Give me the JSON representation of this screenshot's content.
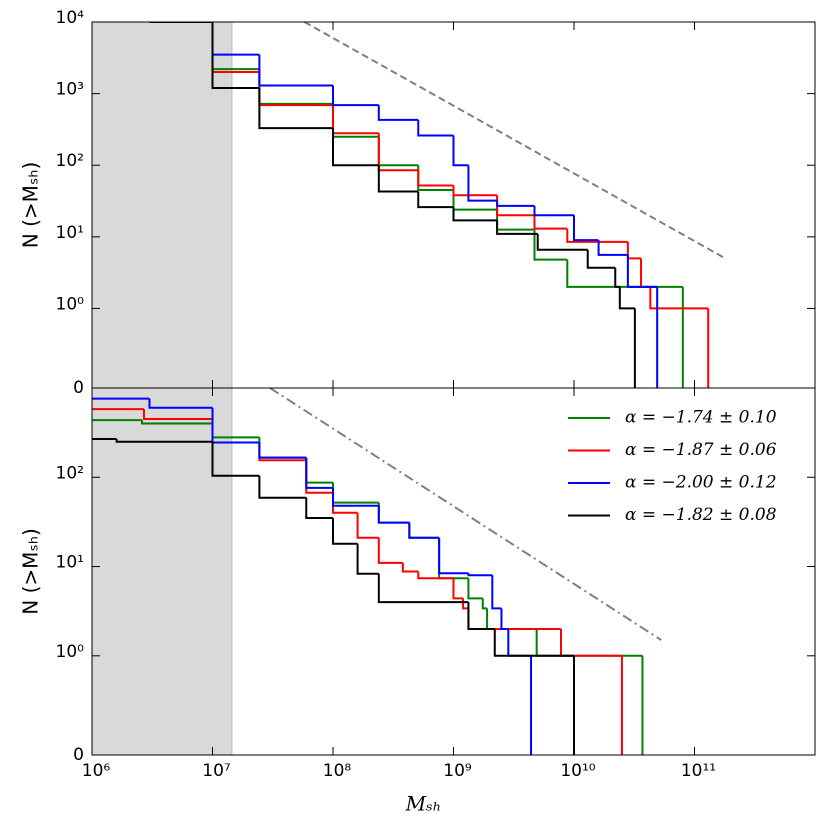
{
  "chart_data": [
    {
      "type": "line",
      "xscale": "log",
      "yscale": "symlog",
      "linthresh": 1,
      "xlim": [
        1000000,
        1000000000000
      ],
      "ylim": [
        0,
        10000
      ],
      "xticks": [
        1000000,
        10000000,
        100000000,
        1000000000,
        10000000000,
        100000000000
      ],
      "yticks": [
        0,
        {
          "value": 1,
          "label": "10⁰"
        },
        {
          "value": 10,
          "label": "10¹"
        },
        {
          "value": 100,
          "label": "10²"
        },
        {
          "value": 1000,
          "label": "10³"
        },
        {
          "value": 10000,
          "label": "10⁴"
        }
      ],
      "ylabel": "N (>Mₛₕ)",
      "shade_xlim": [
        1000000,
        14500000
      ],
      "shade_color": "#d9d9d9",
      "reference": {
        "color": "#808080",
        "dash": "dashed",
        "x": [
          58000000,
          180000000000
        ],
        "values": [
          10000,
          5
        ]
      },
      "series": [
        {
          "color": "#008000",
          "x": [
            4400000,
            10000000,
            24500000,
            100000000,
            240000000,
            510000000,
            1000000000,
            2300000000,
            4700000000,
            8800000000,
            80000000000
          ],
          "values": [
            10000,
            2200,
            720,
            250,
            100,
            45,
            24,
            12.6,
            4.8,
            2,
            0
          ]
        },
        {
          "color": "#ff0000",
          "x": [
            4400000,
            10000000,
            24500000,
            100000000,
            240000000,
            510000000,
            1000000000,
            2300000000,
            4700000000,
            8800000000,
            28000000000,
            36000000000,
            43000000000,
            130000000000
          ],
          "values": [
            10000,
            2000,
            690,
            280,
            85,
            52,
            38,
            20,
            13,
            8.5,
            5,
            2,
            1,
            0
          ]
        },
        {
          "color": "#0000ff",
          "x": [
            7000000,
            10000000,
            24500000,
            100000000,
            240000000,
            510000000,
            1000000000,
            1330000000,
            2300000000,
            4700000000,
            10000000000,
            16000000000,
            28000000000,
            49000000000
          ],
          "values": [
            10000,
            3500,
            1300,
            690,
            430,
            260,
            100,
            32,
            27,
            20,
            9,
            5.6,
            2,
            0
          ]
        },
        {
          "color": "#000000",
          "x": [
            3000000,
            10000000,
            24500000,
            100000000,
            240000000,
            510000000,
            1000000000,
            2300000000,
            5000000000,
            13000000000,
            22000000000,
            24000000000,
            32000000000
          ],
          "values": [
            10000,
            1200,
            330,
            100,
            43,
            26,
            17,
            11,
            6.6,
            3.7,
            2,
            1,
            0
          ]
        }
      ]
    },
    {
      "type": "line",
      "xscale": "log",
      "yscale": "symlog",
      "linthresh": 1,
      "xlim": [
        1000000,
        1000000000000
      ],
      "ylim": [
        0,
        1000
      ],
      "xticks": [
        {
          "value": 1000000,
          "label": "10⁶"
        },
        {
          "value": 10000000,
          "label": "10⁷"
        },
        {
          "value": 100000000,
          "label": "10⁸"
        },
        {
          "value": 1000000000,
          "label": "10⁹"
        },
        {
          "value": 10000000000,
          "label": "10¹⁰"
        },
        {
          "value": 100000000000,
          "label": "10¹¹"
        }
      ],
      "yticks": [
        0,
        {
          "value": 1,
          "label": "10⁰"
        },
        {
          "value": 10,
          "label": "10¹"
        },
        {
          "value": 100,
          "label": "10²"
        }
      ],
      "xlabel": "Mₛₕ",
      "ylabel": "N (>Mₛₕ)",
      "legend": "upper right",
      "shade_xlim": [
        1000000,
        14500000
      ],
      "shade_color": "#d9d9d9",
      "reference": {
        "color": "#808080",
        "dash": "dashdot",
        "x": [
          30000000,
          53000000000
        ],
        "values": [
          1000,
          1.5
        ]
      },
      "series": [
        {
          "name": "α = −1.74 ± 0.10",
          "color": "#008000",
          "x": [
            1000000,
            2600000,
            10000000,
            24500000,
            60000000,
            100000000,
            240000000,
            430000000,
            760000000,
            1330000000,
            1750000000,
            1900000000,
            4900000000,
            37000000000
          ],
          "values": [
            437,
            400,
            280,
            166,
            87,
            52,
            31,
            21,
            7.4,
            4.4,
            3.4,
            2,
            1,
            0
          ]
        },
        {
          "name": "α = −1.87 ± 0.06",
          "color": "#ff0000",
          "x": [
            1000000,
            2700000,
            10000000,
            24500000,
            60000000,
            100000000,
            160000000,
            240000000,
            380000000,
            510000000,
            1000000000,
            1200000000,
            1330000000,
            7800000000,
            25000000000
          ],
          "values": [
            580,
            450,
            245,
            155,
            67,
            40,
            21,
            11,
            8.8,
            7.4,
            4.4,
            3.4,
            2,
            1,
            0
          ]
        },
        {
          "name": "α = −2.00 ± 0.12",
          "color": "#0000ff",
          "x": [
            1000000,
            3000000,
            10000000,
            24500000,
            60000000,
            100000000,
            240000000,
            430000000,
            760000000,
            1330000000,
            2100000000,
            2500000000,
            2850000000,
            4400000000
          ],
          "values": [
            760,
            600,
            245,
            166,
            76,
            48,
            31,
            21,
            8.4,
            8,
            3.4,
            2,
            1,
            0
          ]
        },
        {
          "name": "α = −1.82 ± 0.08",
          "color": "#000000",
          "x": [
            1000000,
            1600000,
            10000000,
            24500000,
            60000000,
            100000000,
            160000000,
            240000000,
            1330000000,
            2200000000,
            10000000000
          ],
          "values": [
            268,
            250,
            104,
            59,
            35,
            18,
            8.3,
            4,
            2,
            1,
            0
          ]
        }
      ]
    }
  ]
}
